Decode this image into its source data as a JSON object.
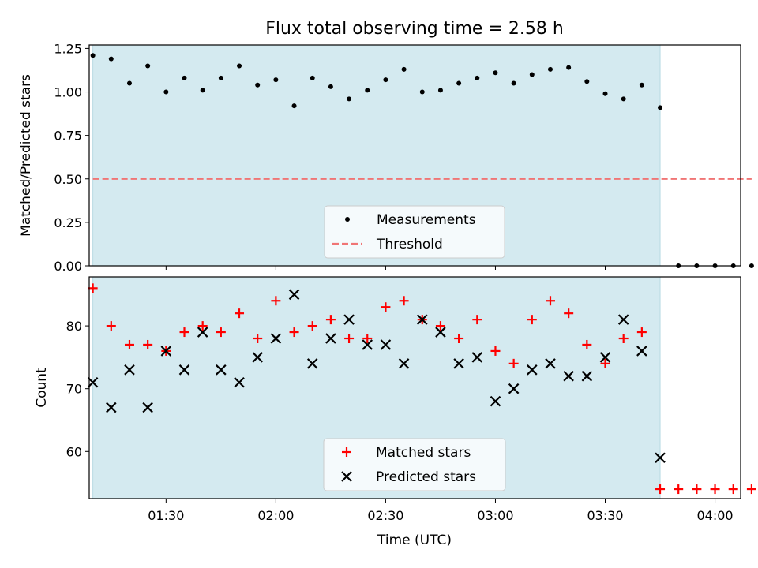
{
  "figure": {
    "title": "Flux total observing time = 2.58 h",
    "xlabel": "Time (UTC)"
  },
  "chart_data": [
    {
      "type": "scatter",
      "ylabel": "Matched/Predicted stars",
      "ylim": [
        0,
        1.27
      ],
      "yticks": [
        "0.00",
        "0.25",
        "0.50",
        "0.75",
        "1.00",
        "1.25"
      ],
      "xlim": [
        "01:09",
        "04:07"
      ],
      "shaded_region": {
        "x": [
          "01:10",
          "03:45"
        ],
        "color": "#d4eaf0"
      },
      "legend": {
        "position": "bottom-center",
        "entries": [
          "Measurements",
          "Threshold"
        ]
      },
      "series": [
        {
          "name": "Measurements",
          "marker": "dot",
          "color": "#000000",
          "x": [
            "01:10",
            "01:15",
            "01:20",
            "01:25",
            "01:30",
            "01:35",
            "01:40",
            "01:45",
            "01:50",
            "01:55",
            "02:00",
            "02:05",
            "02:10",
            "02:15",
            "02:20",
            "02:25",
            "02:30",
            "02:35",
            "02:40",
            "02:45",
            "02:50",
            "02:55",
            "03:00",
            "03:05",
            "03:10",
            "03:15",
            "03:20",
            "03:25",
            "03:30",
            "03:35",
            "03:40",
            "03:45",
            "03:50",
            "03:55",
            "04:00",
            "04:05",
            "04:10"
          ],
          "y": [
            1.21,
            1.19,
            1.05,
            1.15,
            1.0,
            1.08,
            1.01,
            1.08,
            1.15,
            1.04,
            1.07,
            0.92,
            1.08,
            1.03,
            0.96,
            1.01,
            1.07,
            1.13,
            1.0,
            1.01,
            1.05,
            1.08,
            1.11,
            1.05,
            1.1,
            1.13,
            1.14,
            1.06,
            0.99,
            0.96,
            1.04,
            0.91,
            0.0,
            0.0,
            0.0,
            0.0,
            0.0
          ]
        },
        {
          "name": "Threshold",
          "style": "dashed",
          "color": "#f07575",
          "x": [
            "01:10",
            "04:10"
          ],
          "y": [
            0.5,
            0.5
          ]
        }
      ]
    },
    {
      "type": "scatter",
      "ylabel": "Count",
      "ylim": [
        52.5,
        87.8
      ],
      "yticks": [
        "60",
        "70",
        "80"
      ],
      "xticks": [
        "01:30",
        "02:00",
        "02:30",
        "03:00",
        "03:30",
        "04:00"
      ],
      "shaded_region": {
        "x": [
          "01:10",
          "03:45"
        ],
        "color": "#d4eaf0"
      },
      "legend": {
        "position": "bottom-center",
        "entries": [
          "Matched stars",
          "Predicted stars"
        ]
      },
      "series": [
        {
          "name": "Matched stars",
          "marker": "plus",
          "color": "#ff0000",
          "x": [
            "01:10",
            "01:15",
            "01:20",
            "01:25",
            "01:30",
            "01:35",
            "01:40",
            "01:45",
            "01:50",
            "01:55",
            "02:00",
            "02:05",
            "02:10",
            "02:15",
            "02:20",
            "02:25",
            "02:30",
            "02:35",
            "02:40",
            "02:45",
            "02:50",
            "02:55",
            "03:00",
            "03:05",
            "03:10",
            "03:15",
            "03:20",
            "03:25",
            "03:30",
            "03:35",
            "03:40",
            "03:45",
            "03:50",
            "03:55",
            "04:00",
            "04:05",
            "04:10"
          ],
          "y": [
            86,
            80,
            77,
            77,
            76,
            79,
            80,
            79,
            82,
            78,
            84,
            79,
            80,
            81,
            78,
            78,
            83,
            84,
            81,
            80,
            78,
            81,
            76,
            74,
            81,
            84,
            82,
            77,
            74,
            78,
            79,
            54,
            54,
            54,
            54,
            54,
            54
          ]
        },
        {
          "name": "Predicted stars",
          "marker": "x",
          "color": "#000000",
          "x": [
            "01:10",
            "01:15",
            "01:20",
            "01:25",
            "01:30",
            "01:35",
            "01:40",
            "01:45",
            "01:50",
            "01:55",
            "02:00",
            "02:05",
            "02:10",
            "02:15",
            "02:20",
            "02:25",
            "02:30",
            "02:35",
            "02:40",
            "02:45",
            "02:50",
            "02:55",
            "03:00",
            "03:05",
            "03:10",
            "03:15",
            "03:20",
            "03:25",
            "03:30",
            "03:35",
            "03:40",
            "03:45"
          ],
          "y": [
            71,
            67,
            73,
            67,
            76,
            73,
            79,
            73,
            71,
            75,
            78,
            85,
            74,
            78,
            81,
            77,
            77,
            74,
            81,
            79,
            74,
            75,
            68,
            70,
            73,
            74,
            72,
            72,
            75,
            81,
            76,
            59
          ]
        }
      ]
    }
  ]
}
